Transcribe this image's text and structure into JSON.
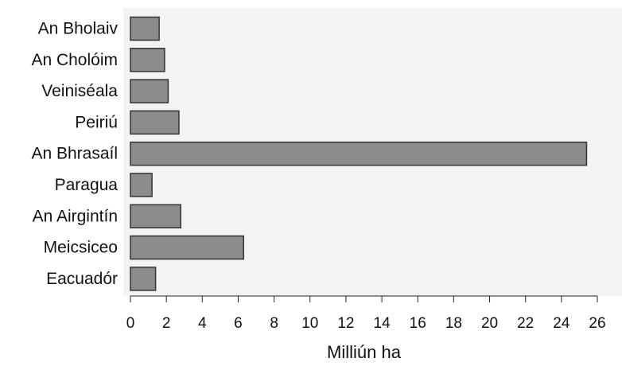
{
  "chart_data": {
    "type": "bar",
    "orientation": "horizontal",
    "categories": [
      "An Bholaiv",
      "An Cholóim",
      "Veiniséala",
      "Peiriú",
      "An Bhrasaíl",
      "Paragua",
      "An Airgintín",
      "Meicsiceo",
      "Eacuadór"
    ],
    "values": [
      1.6,
      1.9,
      2.1,
      2.7,
      25.4,
      1.2,
      2.8,
      6.3,
      1.4
    ],
    "xlabel": "Milliún ha",
    "ylabel": "",
    "xlim": [
      0,
      26
    ],
    "xticks": [
      "0",
      "2",
      "4",
      "6",
      "8",
      "10",
      "12",
      "14",
      "16",
      "18",
      "20",
      "22",
      "24",
      "26"
    ],
    "grid": false,
    "legend": "none",
    "colors": {
      "bar": "#8c8c8c",
      "bar_border": "#333333",
      "plot_background": "#f3f3f3",
      "axis": "#222222"
    }
  }
}
